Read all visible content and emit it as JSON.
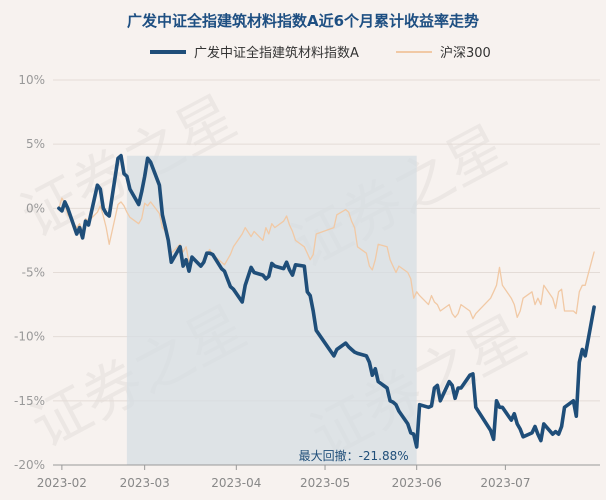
{
  "chart_data": {
    "type": "line",
    "title": "广发中证全指建筑材料指数A近6个月累计收益率走势",
    "x_tick_labels": [
      "2023-02",
      "2023-03",
      "2023-04",
      "2023-05",
      "2023-06",
      "2023-07"
    ],
    "y_tick_labels": [
      "10%",
      "5%",
      "0%",
      "-5%",
      "-10%",
      "-15%",
      "-20%"
    ],
    "ylim": [
      -20,
      10
    ],
    "unit": "%",
    "grid": true,
    "legend_position": "top-center",
    "annotation": "最大回撤：-21.88%",
    "drawdown_range": {
      "start": "2023-02-23",
      "end": "2023-06-01"
    },
    "series": [
      {
        "name": "广发中证全指建筑材料指数A",
        "color": "#1f4e79",
        "points": [
          [
            "2023-01-31",
            0.0
          ],
          [
            "2023-02-01",
            -0.2
          ],
          [
            "2023-02-02",
            0.5
          ],
          [
            "2023-02-03",
            0.0
          ],
          [
            "2023-02-06",
            -2.0
          ],
          [
            "2023-02-07",
            -1.5
          ],
          [
            "2023-02-08",
            -2.3
          ],
          [
            "2023-02-09",
            -1.0
          ],
          [
            "2023-02-10",
            -1.3
          ],
          [
            "2023-02-13",
            1.8
          ],
          [
            "2023-02-14",
            1.5
          ],
          [
            "2023-02-15",
            0.0
          ],
          [
            "2023-02-16",
            -0.4
          ],
          [
            "2023-02-17",
            -0.6
          ],
          [
            "2023-02-20",
            3.9
          ],
          [
            "2023-02-21",
            4.1
          ],
          [
            "2023-02-22",
            2.7
          ],
          [
            "2023-02-23",
            2.5
          ],
          [
            "2023-02-24",
            1.5
          ],
          [
            "2023-02-27",
            0.3
          ],
          [
            "2023-02-28",
            1.3
          ],
          [
            "2023-03-01",
            2.5
          ],
          [
            "2023-03-02",
            3.9
          ],
          [
            "2023-03-03",
            3.6
          ],
          [
            "2023-03-06",
            1.8
          ],
          [
            "2023-03-07",
            -0.5
          ],
          [
            "2023-03-08",
            -1.5
          ],
          [
            "2023-03-09",
            -2.5
          ],
          [
            "2023-03-10",
            -4.2
          ],
          [
            "2023-03-13",
            -3.0
          ],
          [
            "2023-03-14",
            -4.5
          ],
          [
            "2023-03-15",
            -4.0
          ],
          [
            "2023-03-16",
            -4.9
          ],
          [
            "2023-03-17",
            -3.8
          ],
          [
            "2023-03-20",
            -4.5
          ],
          [
            "2023-03-21",
            -4.2
          ],
          [
            "2023-03-22",
            -3.5
          ],
          [
            "2023-03-23",
            -3.5
          ],
          [
            "2023-03-24",
            -3.6
          ],
          [
            "2023-03-27",
            -4.7
          ],
          [
            "2023-03-28",
            -4.9
          ],
          [
            "2023-03-29",
            -5.5
          ],
          [
            "2023-03-30",
            -6.1
          ],
          [
            "2023-03-31",
            -6.3
          ],
          [
            "2023-04-03",
            -7.3
          ],
          [
            "2023-04-04",
            -6.0
          ],
          [
            "2023-04-06",
            -4.6
          ],
          [
            "2023-04-07",
            -5.0
          ],
          [
            "2023-04-10",
            -5.2
          ],
          [
            "2023-04-11",
            -5.5
          ],
          [
            "2023-04-12",
            -5.3
          ],
          [
            "2023-04-13",
            -4.3
          ],
          [
            "2023-04-14",
            -4.5
          ],
          [
            "2023-04-17",
            -4.7
          ],
          [
            "2023-04-18",
            -4.2
          ],
          [
            "2023-04-19",
            -4.8
          ],
          [
            "2023-04-20",
            -5.2
          ],
          [
            "2023-04-21",
            -4.4
          ],
          [
            "2023-04-24",
            -4.5
          ],
          [
            "2023-04-25",
            -6.5
          ],
          [
            "2023-04-26",
            -6.8
          ],
          [
            "2023-04-27",
            -8.0
          ],
          [
            "2023-04-28",
            -9.5
          ],
          [
            "2023-05-04",
            -11.5
          ],
          [
            "2023-05-05",
            -11.0
          ],
          [
            "2023-05-08",
            -10.5
          ],
          [
            "2023-05-09",
            -10.8
          ],
          [
            "2023-05-10",
            -11.0
          ],
          [
            "2023-05-11",
            -11.2
          ],
          [
            "2023-05-12",
            -11.3
          ],
          [
            "2023-05-15",
            -11.5
          ],
          [
            "2023-05-16",
            -12.0
          ],
          [
            "2023-05-17",
            -13.0
          ],
          [
            "2023-05-18",
            -12.5
          ],
          [
            "2023-05-19",
            -13.5
          ],
          [
            "2023-05-22",
            -14.0
          ],
          [
            "2023-05-23",
            -15.0
          ],
          [
            "2023-05-24",
            -15.1
          ],
          [
            "2023-05-25",
            -15.3
          ],
          [
            "2023-05-26",
            -15.8
          ],
          [
            "2023-05-29",
            -16.8
          ],
          [
            "2023-05-30",
            -17.5
          ],
          [
            "2023-05-31",
            -17.6
          ],
          [
            "2023-06-01",
            -18.6
          ],
          [
            "2023-06-02",
            -15.3
          ],
          [
            "2023-06-05",
            -15.5
          ],
          [
            "2023-06-06",
            -15.4
          ],
          [
            "2023-06-07",
            -14.0
          ],
          [
            "2023-06-08",
            -13.8
          ],
          [
            "2023-06-09",
            -15.0
          ],
          [
            "2023-06-12",
            -13.5
          ],
          [
            "2023-06-13",
            -13.8
          ],
          [
            "2023-06-14",
            -14.8
          ],
          [
            "2023-06-15",
            -14.0
          ],
          [
            "2023-06-16",
            -14.0
          ],
          [
            "2023-06-19",
            -13.0
          ],
          [
            "2023-06-20",
            -12.9
          ],
          [
            "2023-06-21",
            -15.5
          ],
          [
            "2023-06-26",
            -17.3
          ],
          [
            "2023-06-27",
            -18.0
          ],
          [
            "2023-06-28",
            -15.0
          ],
          [
            "2023-06-29",
            -15.5
          ],
          [
            "2023-06-30",
            -15.5
          ],
          [
            "2023-07-03",
            -16.5
          ],
          [
            "2023-07-04",
            -16.0
          ],
          [
            "2023-07-05",
            -16.8
          ],
          [
            "2023-07-06",
            -17.2
          ],
          [
            "2023-07-07",
            -17.8
          ],
          [
            "2023-07-10",
            -17.5
          ],
          [
            "2023-07-11",
            -17.0
          ],
          [
            "2023-07-12",
            -17.6
          ],
          [
            "2023-07-13",
            -18.1
          ],
          [
            "2023-07-14",
            -16.8
          ],
          [
            "2023-07-17",
            -17.6
          ],
          [
            "2023-07-18",
            -17.4
          ],
          [
            "2023-07-19",
            -17.6
          ],
          [
            "2023-07-20",
            -17.0
          ],
          [
            "2023-07-21",
            -15.5
          ],
          [
            "2023-07-24",
            -15.0
          ],
          [
            "2023-07-25",
            -16.2
          ],
          [
            "2023-07-26",
            -12.0
          ],
          [
            "2023-07-27",
            -11.0
          ],
          [
            "2023-07-28",
            -11.5
          ],
          [
            "2023-07-31",
            -7.7
          ]
        ]
      },
      {
        "name": "沪深300",
        "color": "#f1c9a5",
        "points": [
          [
            "2023-01-31",
            0.0
          ],
          [
            "2023-02-01",
            0.8
          ],
          [
            "2023-02-02",
            0.4
          ],
          [
            "2023-02-03",
            -0.5
          ],
          [
            "2023-02-06",
            -1.5
          ],
          [
            "2023-02-07",
            -1.2
          ],
          [
            "2023-02-08",
            -1.8
          ],
          [
            "2023-02-09",
            -0.8
          ],
          [
            "2023-02-10",
            -1.0
          ],
          [
            "2023-02-13",
            -0.3
          ],
          [
            "2023-02-14",
            0.2
          ],
          [
            "2023-02-15",
            -0.6
          ],
          [
            "2023-02-16",
            -1.5
          ],
          [
            "2023-02-17",
            -2.8
          ],
          [
            "2023-02-20",
            0.3
          ],
          [
            "2023-02-21",
            0.5
          ],
          [
            "2023-02-22",
            0.2
          ],
          [
            "2023-02-23",
            -0.3
          ],
          [
            "2023-02-24",
            -0.7
          ],
          [
            "2023-02-27",
            -1.2
          ],
          [
            "2023-02-28",
            -0.8
          ],
          [
            "2023-03-01",
            0.4
          ],
          [
            "2023-03-02",
            0.2
          ],
          [
            "2023-03-03",
            0.5
          ],
          [
            "2023-03-06",
            -0.4
          ],
          [
            "2023-03-07",
            -1.5
          ],
          [
            "2023-03-08",
            -1.8
          ],
          [
            "2023-03-09",
            -2.2
          ],
          [
            "2023-03-10",
            -3.5
          ],
          [
            "2023-03-13",
            -2.8
          ],
          [
            "2023-03-14",
            -3.4
          ],
          [
            "2023-03-15",
            -3.0
          ],
          [
            "2023-03-16",
            -4.2
          ],
          [
            "2023-03-17",
            -3.8
          ],
          [
            "2023-03-20",
            -4.5
          ],
          [
            "2023-03-21",
            -3.9
          ],
          [
            "2023-03-22",
            -3.5
          ],
          [
            "2023-03-23",
            -3.2
          ],
          [
            "2023-03-24",
            -3.6
          ],
          [
            "2023-03-27",
            -4.2
          ],
          [
            "2023-03-28",
            -4.4
          ],
          [
            "2023-03-29",
            -4.0
          ],
          [
            "2023-03-30",
            -3.6
          ],
          [
            "2023-03-31",
            -3.0
          ],
          [
            "2023-04-03",
            -2.0
          ],
          [
            "2023-04-04",
            -1.5
          ],
          [
            "2023-04-06",
            -2.2
          ],
          [
            "2023-04-07",
            -1.8
          ],
          [
            "2023-04-10",
            -2.5
          ],
          [
            "2023-04-11",
            -1.5
          ],
          [
            "2023-04-12",
            -2.0
          ],
          [
            "2023-04-13",
            -1.2
          ],
          [
            "2023-04-14",
            -1.5
          ],
          [
            "2023-04-17",
            -1.0
          ],
          [
            "2023-04-18",
            -0.6
          ],
          [
            "2023-04-19",
            -1.3
          ],
          [
            "2023-04-20",
            -1.8
          ],
          [
            "2023-04-21",
            -2.5
          ],
          [
            "2023-04-24",
            -3.0
          ],
          [
            "2023-04-25",
            -3.5
          ],
          [
            "2023-04-26",
            -4.0
          ],
          [
            "2023-04-27",
            -3.6
          ],
          [
            "2023-04-28",
            -2.0
          ],
          [
            "2023-05-04",
            -1.5
          ],
          [
            "2023-05-05",
            -0.5
          ],
          [
            "2023-05-08",
            -0.1
          ],
          [
            "2023-05-09",
            -0.3
          ],
          [
            "2023-05-10",
            -1.0
          ],
          [
            "2023-05-11",
            -1.5
          ],
          [
            "2023-05-12",
            -3.0
          ],
          [
            "2023-05-15",
            -3.5
          ],
          [
            "2023-05-16",
            -4.5
          ],
          [
            "2023-05-17",
            -4.8
          ],
          [
            "2023-05-18",
            -4.0
          ],
          [
            "2023-05-19",
            -2.8
          ],
          [
            "2023-05-22",
            -3.0
          ],
          [
            "2023-05-23",
            -4.0
          ],
          [
            "2023-05-24",
            -4.5
          ],
          [
            "2023-05-25",
            -5.0
          ],
          [
            "2023-05-26",
            -4.5
          ],
          [
            "2023-05-29",
            -5.0
          ],
          [
            "2023-05-30",
            -5.5
          ],
          [
            "2023-05-31",
            -7.0
          ],
          [
            "2023-06-01",
            -6.5
          ],
          [
            "2023-06-02",
            -6.8
          ],
          [
            "2023-06-05",
            -7.5
          ],
          [
            "2023-06-06",
            -6.8
          ],
          [
            "2023-06-07",
            -7.3
          ],
          [
            "2023-06-08",
            -7.5
          ],
          [
            "2023-06-09",
            -8.0
          ],
          [
            "2023-06-12",
            -7.5
          ],
          [
            "2023-06-13",
            -8.2
          ],
          [
            "2023-06-14",
            -8.5
          ],
          [
            "2023-06-15",
            -8.2
          ],
          [
            "2023-06-16",
            -7.5
          ],
          [
            "2023-06-19",
            -8.0
          ],
          [
            "2023-06-20",
            -8.6
          ],
          [
            "2023-06-21",
            -8.2
          ],
          [
            "2023-06-26",
            -7.0
          ],
          [
            "2023-06-27",
            -6.5
          ],
          [
            "2023-06-28",
            -6.0
          ],
          [
            "2023-06-29",
            -4.6
          ],
          [
            "2023-06-30",
            -6.0
          ],
          [
            "2023-07-03",
            -7.0
          ],
          [
            "2023-07-04",
            -7.5
          ],
          [
            "2023-07-05",
            -8.5
          ],
          [
            "2023-07-06",
            -8.0
          ],
          [
            "2023-07-07",
            -7.0
          ],
          [
            "2023-07-10",
            -6.5
          ],
          [
            "2023-07-11",
            -7.5
          ],
          [
            "2023-07-12",
            -7.0
          ],
          [
            "2023-07-13",
            -7.5
          ],
          [
            "2023-07-14",
            -6.0
          ],
          [
            "2023-07-17",
            -7.0
          ],
          [
            "2023-07-18",
            -7.8
          ],
          [
            "2023-07-19",
            -6.5
          ],
          [
            "2023-07-20",
            -6.3
          ],
          [
            "2023-07-21",
            -8.0
          ],
          [
            "2023-07-24",
            -8.0
          ],
          [
            "2023-07-25",
            -8.2
          ],
          [
            "2023-07-26",
            -6.5
          ],
          [
            "2023-07-27",
            -6.0
          ],
          [
            "2023-07-28",
            -6.0
          ],
          [
            "2023-07-31",
            -3.4
          ]
        ]
      }
    ]
  },
  "watermark": "证券之星"
}
